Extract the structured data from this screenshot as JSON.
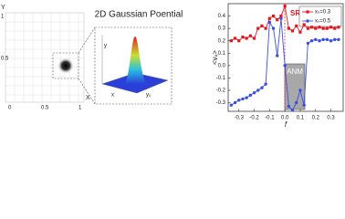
{
  "diagram": {
    "title": "2D Gaussian Poential",
    "x_ticks": [
      "0",
      "0.5",
      "1"
    ],
    "y_ticks": [
      "0.5",
      "1"
    ],
    "x_label": "X",
    "y_label": "Y",
    "inset_labels": [
      "y",
      "x",
      "y₀"
    ]
  },
  "chart_data": {
    "type": "line",
    "x": [
      -0.35,
      -0.325,
      -0.3,
      -0.275,
      -0.25,
      -0.225,
      -0.2,
      -0.175,
      -0.15,
      -0.125,
      -0.1,
      -0.075,
      -0.05,
      -0.025,
      0,
      0.025,
      0.05,
      0.075,
      0.1,
      0.125,
      0.15,
      0.175,
      0.2,
      0.225,
      0.25,
      0.275,
      0.3,
      0.325,
      0.35
    ],
    "series": [
      {
        "name": "xₛ=0.3",
        "color": "#e8141c",
        "marker": "square",
        "values": [
          0.2,
          0.22,
          0.2,
          0.23,
          0.22,
          0.24,
          0.22,
          0.3,
          0.32,
          0.3,
          0.38,
          0.4,
          0.37,
          0.4,
          0.48,
          0.3,
          0.28,
          0.32,
          0.27,
          0.33,
          0.3,
          0.31,
          0.3,
          0.31,
          0.3,
          0.3,
          0.31,
          0.3,
          0.31
        ]
      },
      {
        "name": "xₛ=0.5",
        "color": "#3b4fe0",
        "marker": "circle",
        "values": [
          -0.32,
          -0.3,
          -0.28,
          -0.27,
          -0.26,
          -0.24,
          -0.22,
          -0.2,
          -0.18,
          -0.15,
          0.35,
          0.3,
          0.08,
          0.38,
          0.0,
          -0.33,
          -0.36,
          -0.3,
          -0.2,
          -0.32,
          0.18,
          0.2,
          0.21,
          0.2,
          0.21,
          0.21,
          0.2,
          0.21,
          0.21
        ]
      }
    ],
    "xlim": [
      -0.37,
      0.38
    ],
    "ylim": [
      -0.37,
      0.5
    ],
    "xticks": [
      -0.3,
      -0.2,
      -0.1,
      {
        "value": 0,
        "label": "0.0"
      },
      0.1,
      0.2,
      0.3
    ],
    "yticks": [
      -0.3,
      -0.2,
      -0.1,
      {
        "value": 0,
        "label": "0.0"
      },
      0.1,
      0.2,
      0.3,
      0.4
    ],
    "x_label": "f",
    "y_label": "<vₓ>",
    "legend": "upper right",
    "annotations": [
      "SR",
      "ANM"
    ]
  }
}
